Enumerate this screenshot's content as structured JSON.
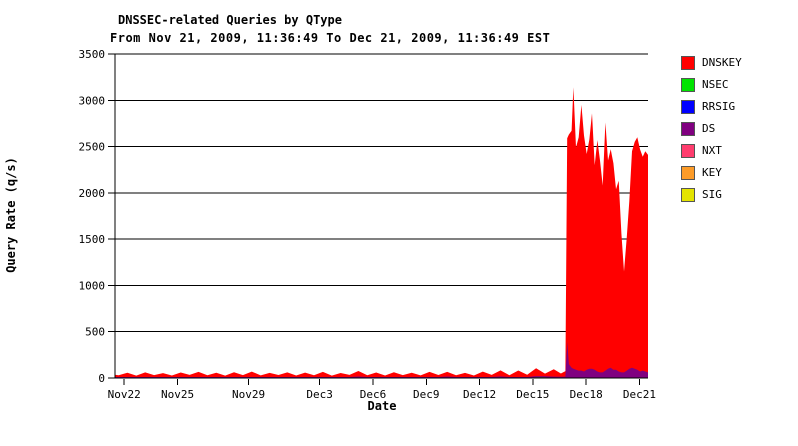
{
  "chart_data": {
    "type": "area",
    "stacked": true,
    "title": "DNSSEC-related Queries by QType",
    "subtitle": "From Nov 21, 2009, 11:36:49 To Dec 21, 2009, 11:36:49 EST",
    "xlabel": "Date",
    "ylabel": "Query Rate (q/s)",
    "ylim": [
      0,
      3500
    ],
    "y_ticks": [
      0,
      500,
      1000,
      1500,
      2000,
      2500,
      3000,
      3500
    ],
    "x_unit": "days since Nov 21, 2009 11:36:49 EST",
    "x_range_days": [
      0,
      30
    ],
    "x_ticks": [
      {
        "label": "Nov22",
        "day": 0.52
      },
      {
        "label": "Nov25",
        "day": 3.52
      },
      {
        "label": "Nov29",
        "day": 7.52
      },
      {
        "label": "Dec3",
        "day": 11.52
      },
      {
        "label": "Dec6",
        "day": 14.52
      },
      {
        "label": "Dec9",
        "day": 17.52
      },
      {
        "label": "Dec12",
        "day": 20.52
      },
      {
        "label": "Dec15",
        "day": 23.52
      },
      {
        "label": "Dec18",
        "day": 26.52
      },
      {
        "label": "Dec21",
        "day": 29.52
      }
    ],
    "grid": "horizontal",
    "legend_position": "right",
    "stack_order_bottom_to_top": [
      "NSEC",
      "DS",
      "DNSKEY"
    ],
    "x": [
      0,
      0.2,
      0.7,
      1.2,
      1.7,
      2.2,
      2.7,
      3.2,
      3.7,
      4.2,
      4.7,
      5.2,
      5.7,
      6.2,
      6.7,
      7.2,
      7.7,
      8.2,
      8.7,
      9.2,
      9.7,
      10.2,
      10.7,
      11.2,
      11.7,
      12.2,
      12.7,
      13.2,
      13.7,
      14.2,
      14.7,
      15.2,
      15.7,
      16.2,
      16.7,
      17.2,
      17.7,
      18.2,
      18.7,
      19.2,
      19.7,
      20.2,
      20.7,
      21.2,
      21.7,
      22.2,
      22.7,
      23.2,
      23.7,
      24.2,
      24.7,
      25.1,
      25.35,
      25.45,
      25.55,
      25.7,
      25.8,
      25.95,
      26.1,
      26.25,
      26.4,
      26.55,
      26.7,
      26.85,
      27,
      27.15,
      27.3,
      27.45,
      27.6,
      27.75,
      27.9,
      28.05,
      28.2,
      28.35,
      28.5,
      28.65,
      28.8,
      28.95,
      29.1,
      29.25,
      29.4,
      29.55,
      29.7,
      29.85,
      30
    ],
    "series": [
      {
        "name": "DNSKEY",
        "color": "#ff0000",
        "values": [
          25,
          18,
          45,
          15,
          50,
          20,
          42,
          16,
          48,
          22,
          55,
          18,
          46,
          15,
          52,
          20,
          58,
          17,
          44,
          21,
          50,
          16,
          47,
          19,
          55,
          15,
          43,
          22,
          60,
          18,
          48,
          16,
          52,
          20,
          46,
          17,
          55,
          21,
          50,
          18,
          44,
          16,
          58,
          22,
          65,
          19,
          70,
          25,
          85,
          30,
          80,
          35,
          60,
          2200,
          2480,
          2560,
          3040,
          2400,
          2520,
          2870,
          2550,
          2330,
          2480,
          2760,
          2210,
          2500,
          2290,
          2020,
          2680,
          2250,
          2360,
          2230,
          1950,
          2060,
          1500,
          1090,
          1430,
          1810,
          2340,
          2450,
          2510,
          2400,
          2310,
          2380,
          2350
        ]
      },
      {
        "name": "NSEC",
        "color": "#00e400",
        "values": [
          0,
          0,
          0,
          0,
          0,
          0,
          0,
          0,
          0,
          0,
          0,
          0,
          0,
          0,
          0,
          0,
          0,
          0,
          0,
          0,
          0,
          0,
          0,
          0,
          0,
          0,
          0,
          0,
          5,
          0,
          0,
          0,
          0,
          0,
          0,
          0,
          0,
          0,
          5,
          0,
          0,
          0,
          0,
          0,
          6,
          0,
          0,
          0,
          7,
          6,
          0,
          0,
          0,
          0,
          0,
          0,
          0,
          0,
          0,
          0,
          0,
          0,
          0,
          0,
          0,
          0,
          0,
          0,
          0,
          0,
          0,
          0,
          0,
          0,
          0,
          0,
          0,
          0,
          0,
          0,
          0,
          0,
          0,
          0,
          0
        ]
      },
      {
        "name": "RRSIG",
        "color": "#0000ff",
        "visible_traffic": "none (at or near zero for entire period)"
      },
      {
        "name": "DS",
        "color": "#800080",
        "values": [
          11,
          11,
          11,
          11,
          11,
          11,
          11,
          11,
          11,
          11,
          11,
          11,
          11,
          11,
          11,
          11,
          11,
          11,
          11,
          11,
          11,
          11,
          11,
          11,
          11,
          11,
          11,
          11,
          11,
          11,
          11,
          11,
          11,
          11,
          11,
          11,
          11,
          11,
          11,
          11,
          11,
          11,
          11,
          11,
          11,
          11,
          11,
          11,
          14,
          12,
          15,
          14,
          15,
          390,
          150,
          110,
          100,
          90,
          80,
          80,
          70,
          90,
          100,
          100,
          90,
          70,
          60,
          60,
          80,
          100,
          110,
          90,
          90,
          70,
          60,
          60,
          80,
          100,
          110,
          100,
          90,
          70,
          80,
          70,
          60
        ]
      },
      {
        "name": "NXT",
        "color": "#ff3d6e",
        "visible_traffic": "none (at or near zero for entire period)"
      },
      {
        "name": "KEY",
        "color": "#fc9b28",
        "visible_traffic": "none (at or near zero for entire period)"
      },
      {
        "name": "SIG",
        "color": "#e4e400",
        "visible_traffic": "none (at or near zero for entire period)"
      }
    ],
    "annotations": {
      "baseline": "total query rate oscillates daily ~15-85 q/s from Nov 22 through Dec 16",
      "spike": "DNSKEY jumps to ~2600 q/s late Dec 16, peaks ~3140 q/s on Dec 17, stays ~2000-2900 with a dip to ~1150 around Dec 19-20, ends ~2400 q/s at Dec 21",
      "ds_spike": "DS spikes to ~390 q/s at onset of the event, then holds ~60-110 q/s band through Dec 21"
    }
  }
}
